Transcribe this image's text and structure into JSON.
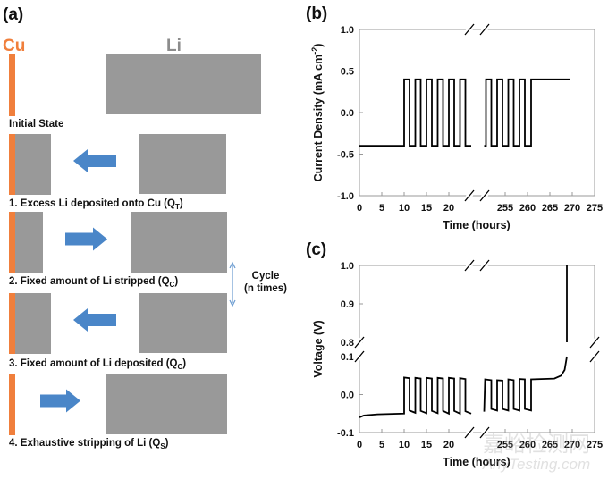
{
  "schematic": {
    "panel_label": "(a)",
    "cu_label": "Cu",
    "li_label": "Li",
    "initial_state": "Initial State",
    "colors": {
      "cu": "#f07f3c",
      "li": "#999999",
      "arrow": "#4a86c8",
      "cu_label": "#f07f3c",
      "li_label": "#8c8c8c"
    },
    "steps": [
      {
        "prefix": "1. Excess Li deposited onto Cu (Q",
        "sub": "T",
        "suffix": ")",
        "arrow": "left"
      },
      {
        "prefix": "2. Fixed amount of Li stripped (Q",
        "sub": "C",
        "suffix": ")",
        "arrow": "right"
      },
      {
        "prefix": "3. Fixed amount of Li deposited (Q",
        "sub": "C",
        "suffix": ")",
        "arrow": "left"
      },
      {
        "prefix": "4. Exhaustive stripping of Li (Q",
        "sub": "S",
        "suffix": ")",
        "arrow": "right"
      }
    ],
    "cycle_line1": "Cycle",
    "cycle_line2": "(n times)"
  },
  "watermark": {
    "line1": "嘉峪检测网",
    "line2": "AnyTesting.com"
  },
  "chart_data": [
    {
      "panel_label": "(b)",
      "type": "line",
      "xlabel": "Time (hours)",
      "ylabel": "Current Density (mA cm",
      "ylabel_sup": "-2",
      "ylabel_end": ")",
      "x_segments": [
        [
          0,
          24.5
        ],
        [
          250,
          275
        ]
      ],
      "xticks": [
        0,
        5,
        10,
        15,
        20,
        255,
        260,
        265,
        270,
        275
      ],
      "ylim": [
        -1.0,
        1.0
      ],
      "yticks": [
        "1.0",
        "0.5",
        "0.0",
        "-0.5",
        "-1.0"
      ],
      "grid": false,
      "series": [
        {
          "points": [
            [
              0,
              -0.4
            ],
            [
              10,
              -0.4
            ],
            [
              10,
              0.4
            ],
            [
              11.2,
              0.4
            ],
            [
              11.2,
              -0.4
            ],
            [
              12.5,
              -0.4
            ],
            [
              12.5,
              0.4
            ],
            [
              13.7,
              0.4
            ],
            [
              13.7,
              -0.4
            ],
            [
              15,
              -0.4
            ],
            [
              15,
              0.4
            ],
            [
              16.2,
              0.4
            ],
            [
              16.2,
              -0.4
            ],
            [
              17.5,
              -0.4
            ],
            [
              17.5,
              0.4
            ],
            [
              18.7,
              0.4
            ],
            [
              18.7,
              -0.4
            ],
            [
              20,
              -0.4
            ],
            [
              20,
              0.4
            ],
            [
              21.2,
              0.4
            ],
            [
              21.2,
              -0.4
            ],
            [
              22.5,
              -0.4
            ],
            [
              22.5,
              0.4
            ],
            [
              23.7,
              0.4
            ],
            [
              23.7,
              -0.4
            ],
            [
              25,
              -0.4
            ]
          ]
        },
        {
          "points": [
            [
              250.3,
              -0.4
            ],
            [
              250.7,
              -0.4
            ],
            [
              250.7,
              0.4
            ],
            [
              251.9,
              0.4
            ],
            [
              251.9,
              -0.4
            ],
            [
              253.2,
              -0.4
            ],
            [
              253.2,
              0.4
            ],
            [
              254.4,
              0.4
            ],
            [
              254.4,
              -0.4
            ],
            [
              255.7,
              -0.4
            ],
            [
              255.7,
              0.4
            ],
            [
              256.9,
              0.4
            ],
            [
              256.9,
              -0.4
            ],
            [
              258.2,
              -0.4
            ],
            [
              258.2,
              0.4
            ],
            [
              259.4,
              0.4
            ],
            [
              259.4,
              -0.4
            ],
            [
              260.8,
              -0.4
            ],
            [
              260.8,
              0.4
            ],
            [
              269.4,
              0.4
            ]
          ]
        }
      ]
    },
    {
      "panel_label": "(c)",
      "type": "line",
      "xlabel": "Time (hours)",
      "ylabel": "Voltage (V)",
      "x_segments": [
        [
          0,
          24.5
        ],
        [
          250,
          275
        ]
      ],
      "xticks": [
        0,
        5,
        10,
        15,
        20,
        255,
        260,
        265,
        270,
        275
      ],
      "y_segments": [
        [
          -0.1,
          0.1
        ],
        [
          0.8,
          1.0
        ]
      ],
      "yticks": [
        "1.0",
        "0.9",
        "0.8",
        "0.1",
        "0.0",
        "-0.1"
      ],
      "grid": false,
      "series": [
        {
          "points": [
            [
              0,
              -0.06
            ],
            [
              1,
              -0.055
            ],
            [
              4,
              -0.052
            ],
            [
              10,
              -0.05
            ],
            [
              10,
              0.045
            ],
            [
              11.2,
              0.043
            ],
            [
              11.2,
              -0.042
            ],
            [
              12.5,
              -0.048
            ],
            [
              12.5,
              0.044
            ],
            [
              13.7,
              0.042
            ],
            [
              13.7,
              -0.043
            ],
            [
              15,
              -0.049
            ],
            [
              15,
              0.044
            ],
            [
              16.2,
              0.042
            ],
            [
              16.2,
              -0.043
            ],
            [
              17.5,
              -0.049
            ],
            [
              17.5,
              0.044
            ],
            [
              18.7,
              0.042
            ],
            [
              18.7,
              -0.043
            ],
            [
              20,
              -0.05
            ],
            [
              20,
              0.044
            ],
            [
              21.2,
              0.042
            ],
            [
              21.2,
              -0.043
            ],
            [
              22.5,
              -0.05
            ],
            [
              22.5,
              0.043
            ],
            [
              23.7,
              0.041
            ],
            [
              23.7,
              -0.044
            ],
            [
              25,
              -0.05
            ]
          ]
        },
        {
          "points": [
            [
              250.3,
              -0.045
            ],
            [
              250.5,
              0.04
            ],
            [
              251.9,
              0.038
            ],
            [
              251.9,
              -0.038
            ],
            [
              253.2,
              -0.042
            ],
            [
              253.2,
              0.038
            ],
            [
              254.4,
              0.037
            ],
            [
              254.4,
              -0.038
            ],
            [
              255.7,
              -0.042
            ],
            [
              255.7,
              0.04
            ],
            [
              256.9,
              0.038
            ],
            [
              256.9,
              -0.038
            ],
            [
              258.2,
              -0.042
            ],
            [
              258.2,
              0.041
            ],
            [
              259.4,
              0.04
            ],
            [
              259.4,
              -0.038
            ],
            [
              260.8,
              -0.042
            ],
            [
              260.8,
              0.04
            ],
            [
              266,
              0.042
            ],
            [
              267.5,
              0.05
            ],
            [
              268.3,
              0.065
            ],
            [
              268.8,
              0.1
            ]
          ]
        },
        {
          "points": [
            [
              268.8,
              0.8
            ],
            [
              268.8,
              1.0
            ]
          ]
        }
      ]
    }
  ]
}
